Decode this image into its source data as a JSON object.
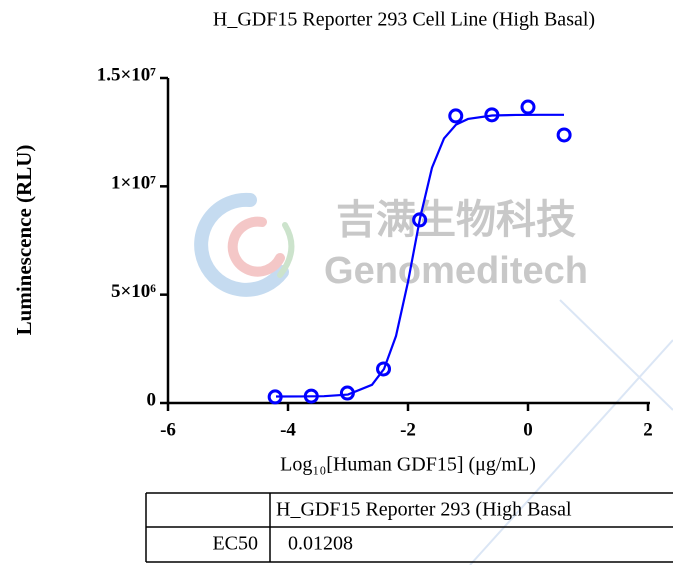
{
  "chart_data": {
    "title": "H_GDF15 Reporter 293 Cell Line (High Basal)",
    "x_label": "Log₁₀[Human GDF15] (μg/mL)",
    "y_label": "Luminescence (RLU)",
    "watermark": [
      "吉满生物科技",
      "Genomeditech"
    ],
    "xlim": [
      -6,
      2
    ],
    "xticks": [
      -6,
      -4,
      -2,
      0,
      2
    ],
    "ylim": [
      0,
      15000000
    ],
    "yticks": [
      0,
      {
        "value": 5000000,
        "label": "5×10⁶"
      },
      {
        "value": 10000000,
        "label": "1×10⁷"
      },
      {
        "value": 15000000,
        "label": "1.5×10⁷"
      }
    ],
    "series": [
      {
        "type": "scatter",
        "color": "#0000ff",
        "x": [
          -4.214,
          -3.612,
          -3.01,
          -2.408,
          -1.806,
          -1.204,
          -0.602,
          0,
          0.602
        ],
        "values": [
          280000,
          320000,
          460000,
          1570000,
          8450000,
          13250000,
          13300000,
          13660000,
          12370000
        ]
      },
      {
        "type": "line",
        "color": "#0000ff",
        "x": [
          -4.2,
          -3.8,
          -3.4,
          -3.0,
          -2.6,
          -2.4,
          -2.2,
          -2.0,
          -1.8,
          -1.6,
          -1.4,
          -1.2,
          -1.0,
          -0.6,
          -0.2,
          0.2,
          0.6
        ],
        "values": [
          300000,
          302000,
          314000,
          389000,
          840000,
          1570000,
          3090000,
          5590000,
          8520000,
          10860000,
          12210000,
          12845000,
          13110000,
          13270000,
          13295000,
          13300000,
          13300000
        ]
      }
    ]
  },
  "table": {
    "header": [
      "H_GDF15 Reporter 293 (High Basal"
    ],
    "rows": [
      [
        "EC50",
        0.01208
      ]
    ]
  }
}
